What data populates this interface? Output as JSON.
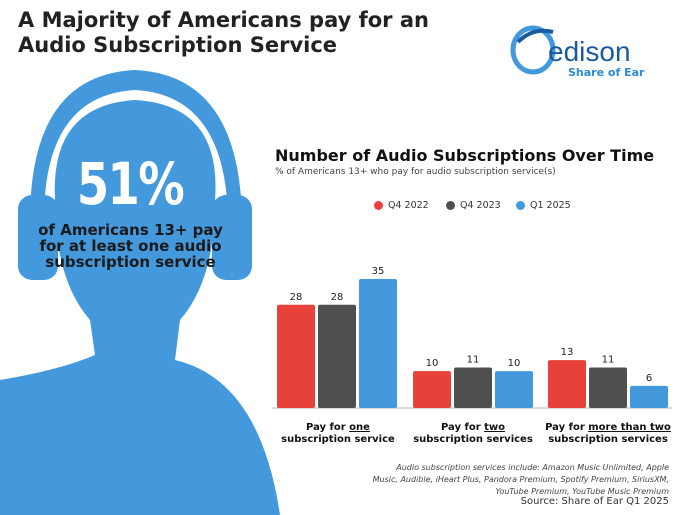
{
  "title": "A Majority of Americans pay for an Audio Subscription Service",
  "stat": {
    "value": "51%",
    "text": "of Americans 13+ pay for at least one audio subscription service"
  },
  "logo": {
    "name": "edison",
    "tagline": "Share of Ear"
  },
  "chart_data": {
    "type": "bar",
    "title": "Number of Audio Subscriptions Over Time",
    "subtitle": "% of Americans 13+ who pay for audio subscription service(s)",
    "categories": [
      {
        "pre": "Pay for ",
        "u": "one",
        "line2": "subscription service"
      },
      {
        "pre": "Pay for ",
        "u": "two",
        "line2": "subscription services"
      },
      {
        "pre": "Pay for ",
        "u": "more than two",
        "line2": "subscription services"
      }
    ],
    "series": [
      {
        "name": "Q4 2022",
        "color": "#e8413a",
        "values": [
          28,
          10,
          13
        ]
      },
      {
        "name": "Q4 2023",
        "color": "#4f4f4f",
        "values": [
          28,
          11,
          11
        ]
      },
      {
        "name": "Q1 2025",
        "color": "#4499dd",
        "values": [
          35,
          10,
          6
        ]
      }
    ],
    "ylim": [
      0,
      35
    ],
    "legend": "top",
    "grid": false
  },
  "note": "Audio subscription services include: Amazon Music Unlimited, Apple Music, Audible, iHeart Plus, Pandora Premium, Spotify Premium, SiriusXM, YouTube Premium, YouTube Music Premium",
  "source": "Source: Share of Ear Q1 2025"
}
